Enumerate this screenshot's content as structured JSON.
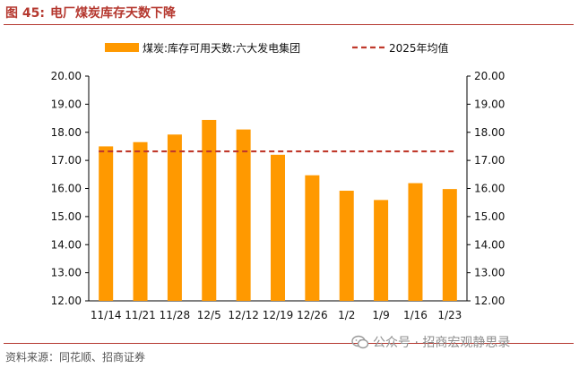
{
  "figure": {
    "number": "图 45:",
    "title": "电厂煤炭库存天数下降",
    "source": "资料来源：同花顺、招商证券",
    "watermark": "公众号 · 招商宏观静思录"
  },
  "colors": {
    "bar": "#FF9900",
    "avg_line": "#C0392B",
    "accent": "#b5382f"
  },
  "chart_data": {
    "type": "bar",
    "categories": [
      "11/14",
      "11/21",
      "11/28",
      "12/5",
      "12/12",
      "12/19",
      "12/26",
      "1/2",
      "1/9",
      "1/16",
      "1/23"
    ],
    "series": [
      {
        "name": "煤炭:库存可用天数:六大发电集团",
        "type": "bar",
        "values": [
          17.5,
          17.65,
          17.92,
          18.44,
          18.1,
          17.2,
          16.47,
          15.92,
          15.59,
          16.19,
          15.98
        ]
      },
      {
        "name": "2025年均值",
        "type": "line",
        "style": "dashed",
        "value": 17.32
      }
    ],
    "y_ticks": [
      "20.00",
      "19.00",
      "18.00",
      "17.00",
      "16.00",
      "15.00",
      "14.00",
      "13.00",
      "12.00"
    ],
    "ylim": [
      12,
      20
    ],
    "dual_axis": true,
    "legend_position": "top"
  }
}
